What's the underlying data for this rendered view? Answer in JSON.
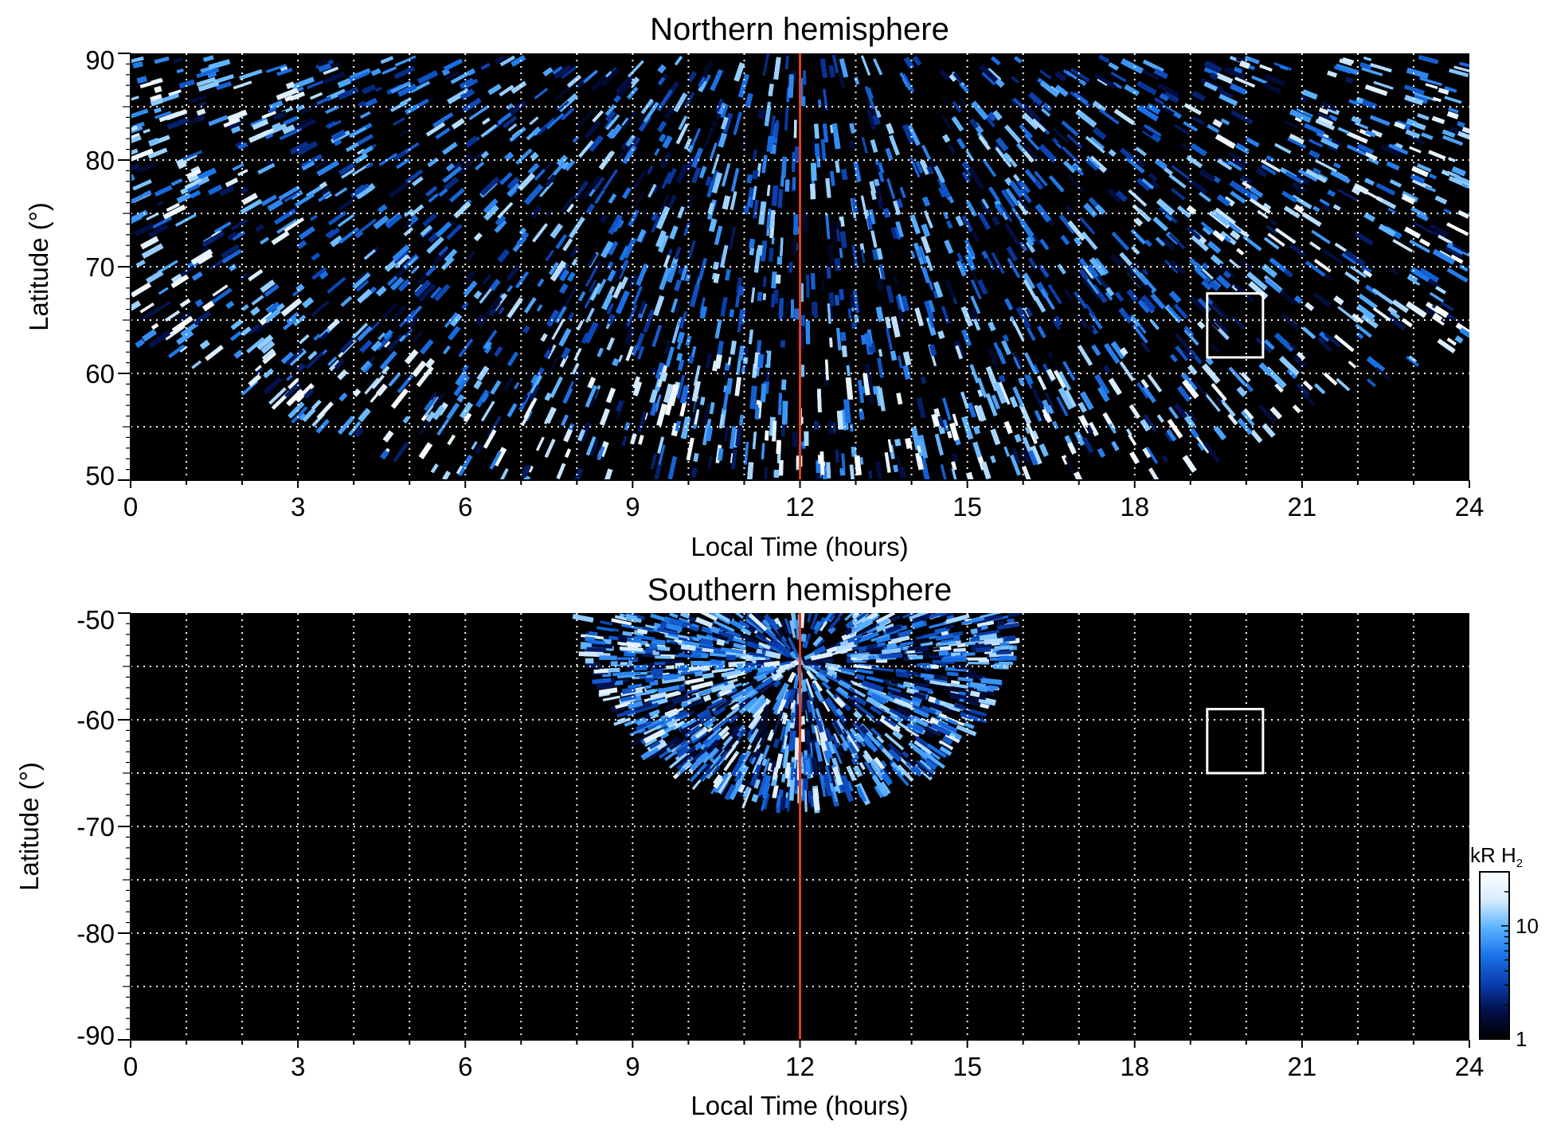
{
  "chart_data": [
    {
      "type": "heatmap",
      "title": "Northern hemisphere",
      "xlabel": "Local Time (hours)",
      "ylabel": "Latitude (°)",
      "xlim": [
        0,
        24
      ],
      "ylim": [
        50,
        90
      ],
      "x_ticks": [
        "0",
        "3",
        "6",
        "9",
        "12",
        "15",
        "18",
        "21",
        "24"
      ],
      "y_ticks": [
        "50",
        "60",
        "70",
        "80",
        "90"
      ],
      "grid": true,
      "reference_line": {
        "local_time": 12,
        "color": "#e0401c"
      },
      "box": {
        "lt_range": [
          19.3,
          20.3
        ],
        "lat_range": [
          61.5,
          67.5
        ],
        "color": "#ffffff"
      },
      "coverage": {
        "noon_edge_lat": 50,
        "edge_slope_deg_per_hour": 2.4,
        "polar_limit_lat": 89.5
      },
      "colormap": [
        "#000000",
        "#02104a",
        "#0a3fae",
        "#1a73e8",
        "#5cb3ff",
        "#d7ecff",
        "#ffffff"
      ]
    },
    {
      "type": "heatmap",
      "title": "Southern hemisphere",
      "xlabel": "Local Time (hours)",
      "ylabel": "Latitude (°)",
      "xlim": [
        0,
        24
      ],
      "ylim": [
        -90,
        -50
      ],
      "x_ticks": [
        "0",
        "3",
        "6",
        "9",
        "12",
        "15",
        "18",
        "21",
        "24"
      ],
      "y_ticks": [
        "-90",
        "-80",
        "-70",
        "-60",
        "-50"
      ],
      "grid": true,
      "reference_line": {
        "local_time": 12,
        "color": "#e0401c"
      },
      "box": {
        "lt_range": [
          19.3,
          20.3
        ],
        "lat_range": [
          -65,
          -59
        ],
        "color": "#ffffff"
      },
      "coverage": {
        "center_lt": 12,
        "lt_half_width": 3.9,
        "lat_top": -50,
        "lat_bottom": -68
      },
      "colormap": [
        "#000000",
        "#02104a",
        "#0a3fae",
        "#1a73e8",
        "#5cb3ff",
        "#d7ecff",
        "#ffffff"
      ]
    }
  ],
  "colorbar": {
    "title": "kR H",
    "title_subscript": "2",
    "scale": "log",
    "range": [
      1,
      30
    ],
    "tick_labels": [
      "1",
      "10"
    ],
    "colors": [
      "#000000",
      "#02104a",
      "#0a3fae",
      "#1a73e8",
      "#5cb3ff",
      "#d7ecff",
      "#ffffff"
    ]
  }
}
